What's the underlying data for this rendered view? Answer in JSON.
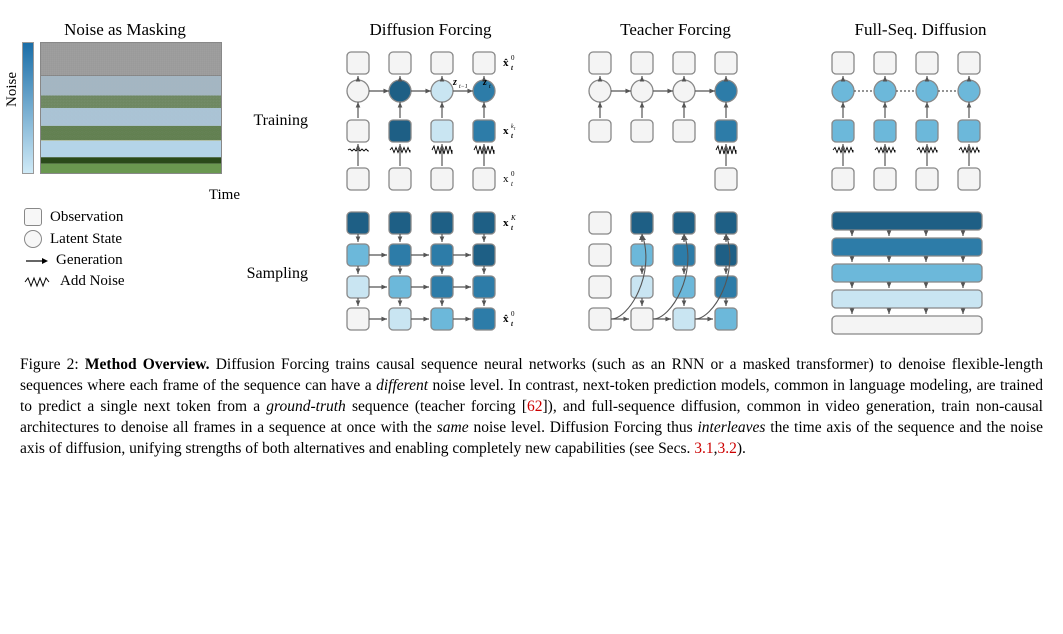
{
  "left": {
    "title": "Noise as Masking",
    "ylabel": "Noise",
    "xlabel": "Time"
  },
  "legend": {
    "observation": "Observation",
    "latent": "Latent State",
    "generation": "Generation",
    "addnoise": "Add Noise"
  },
  "headers": {
    "diffusion_forcing": "Diffusion Forcing",
    "teacher_forcing": "Teacher Forcing",
    "fullseq": "Full-Seq. Diffusion"
  },
  "rows": {
    "training": "Training",
    "sampling": "Sampling"
  },
  "mathlabels": {
    "x0": "x̂",
    "x0_sup": "0",
    "x0_sub": "t",
    "z": "z",
    "z_sub1": "t−1",
    "z_sub2": "t",
    "xk": "x",
    "xk_sup": "kₜ",
    "xk_sub": "t",
    "xK_sup": "K",
    "x0b_sup": "0"
  },
  "caption": {
    "figlabel": "Figure 2: ",
    "title": "Method Overview.",
    "body1": " Diffusion Forcing trains causal sequence neural networks (such as an RNN or a masked transformer) to denoise flexible-length sequences where each frame of the sequence can have a ",
    "em1": "different",
    "body2": " noise level. In contrast, next-token prediction models, common in language modeling, are trained to predict a single next token from a ",
    "em2": "ground-truth",
    "body3": " sequence (teacher forcing [",
    "cite": "62",
    "body4": "]), and full-sequence diffusion, common in video generation, train non-causal architectures to denoise all frames in a sequence at once with the ",
    "em3": "same",
    "body5": " noise level. Diffusion Forcing thus ",
    "em4": "interleaves",
    "body6": " the time axis of the sequence and the noise axis of diffusion, unifying strengths of both alternatives and enabling completely new capabilities (see Secs. ",
    "sec1": "3.1",
    "comma": ",",
    "sec2": "3.2",
    "body7": ")."
  },
  "colors": {
    "c0": "#f4f4f4",
    "c1": "#c9e5f2",
    "c2": "#6cb8da",
    "c3": "#2d7ca8",
    "c4": "#1e5f85",
    "stroke": "#888888",
    "arrow": "#555555"
  },
  "df_train": {
    "top": [
      "c0",
      "c0",
      "c0",
      "c0"
    ],
    "latent": [
      "c0",
      "c4",
      "c1",
      "c3"
    ],
    "mid": [
      "c0",
      "c4",
      "c1",
      "c3"
    ],
    "bot": [
      "c0",
      "c0",
      "c0",
      "c0"
    ],
    "noise": [
      0,
      1,
      2,
      3
    ]
  },
  "tf_train": {
    "top": [
      "c0",
      "c0",
      "c0",
      "c0"
    ],
    "latent": [
      "c0",
      "c0",
      "c0",
      "c3"
    ],
    "mid": [
      "c0",
      "c0",
      "c0",
      "c3"
    ],
    "bot": [
      "c0",
      "c0",
      "c0",
      "c0"
    ],
    "noise_last_only": true
  },
  "fs_train": {
    "top": [
      "c0",
      "c0",
      "c0",
      "c0"
    ],
    "latent": [
      "c2",
      "c2",
      "c2",
      "c2"
    ],
    "mid": [
      "c2",
      "c2",
      "c2",
      "c2"
    ],
    "bot": [
      "c0",
      "c0",
      "c0",
      "c0"
    ],
    "noise": [
      1,
      1,
      1,
      1
    ]
  },
  "df_samp": {
    "rows": [
      [
        "c4",
        "c4",
        "c4",
        "c4"
      ],
      [
        "c2",
        "c3",
        "c3",
        "c4"
      ],
      [
        "c1",
        "c2",
        "c3",
        "c3"
      ],
      [
        "c0",
        "c1",
        "c2",
        "c3"
      ]
    ]
  },
  "tf_samp": {
    "rows": [
      [
        "c0",
        "c4",
        "c4",
        "c4"
      ],
      [
        "c0",
        "c2",
        "c3",
        "c4"
      ],
      [
        "c0",
        "c1",
        "c2",
        "c3"
      ],
      [
        "c0",
        "c0",
        "c1",
        "c2"
      ]
    ]
  },
  "fs_samp": {
    "bars": [
      "c4",
      "c3",
      "c2",
      "c1",
      "c0"
    ]
  }
}
